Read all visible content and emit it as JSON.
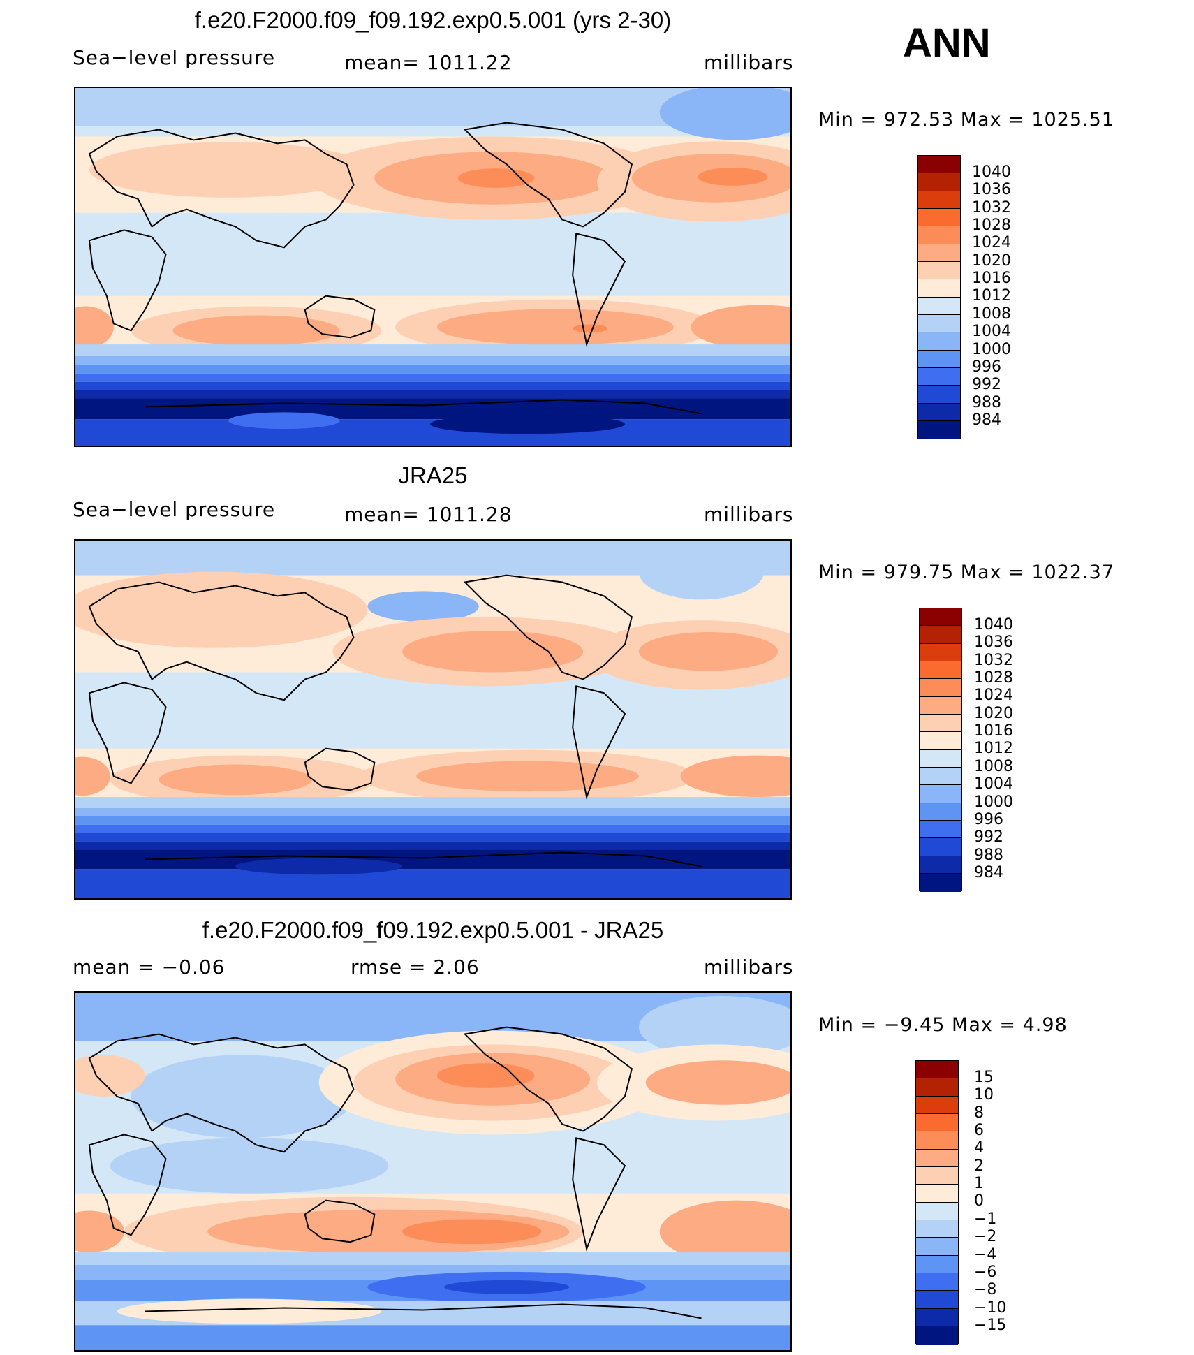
{
  "season": "ANN",
  "panels": [
    {
      "title": "f.e20.F2000.f09_f09.192.exp0.5.001 (yrs 2-30)",
      "left_label": "Sea−level pressure",
      "center_label": "mean=  1011.22",
      "units": "millibars",
      "minmax": "Min  =  972.53  Max  =  1025.51",
      "colorbar_labels": [
        "1040",
        "1036",
        "1032",
        "1028",
        "1024",
        "1020",
        "1016",
        "1012",
        "1008",
        "1004",
        "1000",
        "996",
        "992",
        "988",
        "984"
      ],
      "colorbar_colors": [
        "#8b0000",
        "#b32203",
        "#dc3d0c",
        "#fb6a2f",
        "#fc8d59",
        "#fcab82",
        "#fdd0b3",
        "#feebd8",
        "#d4e7f7",
        "#b3d2f5",
        "#8ab6f7",
        "#5e94f3",
        "#3f6ff0",
        "#2049d6",
        "#0d2ba8",
        "#001580"
      ]
    },
    {
      "title": "JRA25",
      "left_label": "Sea−level pressure",
      "center_label": "mean=  1011.28",
      "units": "millibars",
      "minmax": "Min  =  979.75  Max  =  1022.37",
      "colorbar_labels": [
        "1040",
        "1036",
        "1032",
        "1028",
        "1024",
        "1020",
        "1016",
        "1012",
        "1008",
        "1004",
        "1000",
        "996",
        "992",
        "988",
        "984"
      ],
      "colorbar_colors": [
        "#8b0000",
        "#b32203",
        "#dc3d0c",
        "#fb6a2f",
        "#fc8d59",
        "#fcab82",
        "#fdd0b3",
        "#feebd8",
        "#d4e7f7",
        "#b3d2f5",
        "#8ab6f7",
        "#5e94f3",
        "#3f6ff0",
        "#2049d6",
        "#0d2ba8",
        "#001580"
      ]
    },
    {
      "title": "f.e20.F2000.f09_f09.192.exp0.5.001 - JRA25",
      "left_label": "mean  =    −0.06",
      "center_label": "rmse  =     2.06",
      "units": "millibars",
      "minmax": "Min  =    −9.45  Max  =      4.98",
      "colorbar_labels": [
        "15",
        "10",
        "8",
        "6",
        "4",
        "2",
        "1",
        "0",
        "−1",
        "−2",
        "−4",
        "−6",
        "−8",
        "−10",
        "−15"
      ],
      "colorbar_colors": [
        "#8b0000",
        "#b32203",
        "#dc3d0c",
        "#fb6a2f",
        "#fc8d59",
        "#fcab82",
        "#fdd0b3",
        "#feebd8",
        "#d4e7f7",
        "#b3d2f5",
        "#8ab6f7",
        "#5e94f3",
        "#3f6ff0",
        "#2049d6",
        "#0d2ba8",
        "#001580"
      ]
    }
  ]
}
